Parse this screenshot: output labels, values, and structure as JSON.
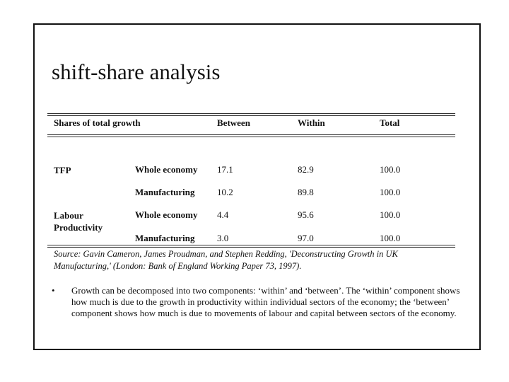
{
  "title": "shift-share analysis",
  "table": {
    "header": {
      "label": "Shares of total growth",
      "between": "Between",
      "within": "Within",
      "total": "Total"
    },
    "rows": [
      {
        "group": "TFP",
        "sector": "Whole economy",
        "between": "17.1",
        "within": "82.9",
        "total": "100.0"
      },
      {
        "sector": "Manufacturing",
        "between": "10.2",
        "within": "89.8",
        "total": "100.0"
      },
      {
        "group": "Labour Productivity",
        "sector": "Whole economy",
        "between": "4.4",
        "within": "95.6",
        "total": "100.0"
      },
      {
        "sector": "Manufacturing",
        "between": "3.0",
        "within": "97.0",
        "total": "100.0"
      }
    ],
    "source": "Source: Gavin Cameron, James Proudman, and Stephen Redding, 'Deconstructing Growth in UK Manufacturing,' (London: Bank of England Working Paper 73, 1997)."
  },
  "bullet": "Growth can be decomposed into two components: ‘within’ and ‘between’.  The ‘within’ component shows how much is due to the growth in productivity within individual sectors of the economy; the ‘between’ component shows how much is due to movements of labour and capital between sectors of the economy."
}
